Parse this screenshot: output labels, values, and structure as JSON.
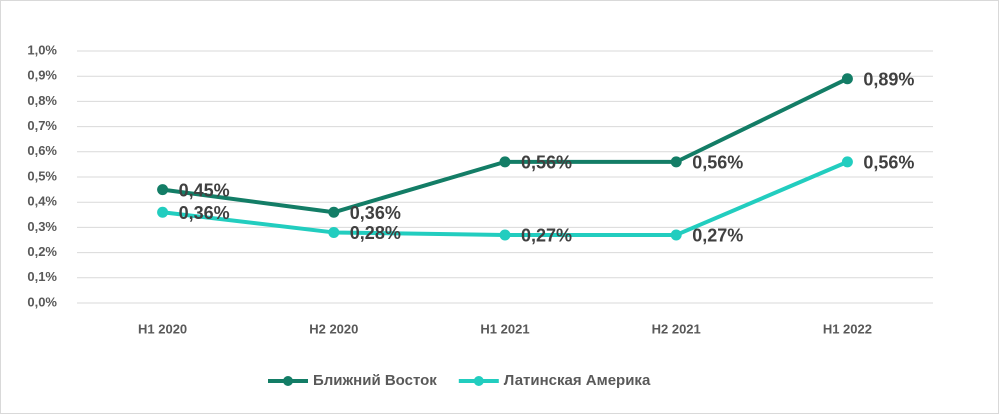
{
  "chart_data": {
    "type": "line",
    "categories": [
      "H1 2020",
      "H2 2020",
      "H1 2021",
      "H2 2021",
      "H1 2022"
    ],
    "series": [
      {
        "name": "Ближний Восток",
        "color": "#137d66",
        "values": [
          0.45,
          0.36,
          0.56,
          0.56,
          0.89
        ],
        "value_labels": [
          "0,45%",
          "0,36%",
          "0,56%",
          "0,56%",
          "0,89%"
        ]
      },
      {
        "name": "Латинская Америка",
        "color": "#22cdbf",
        "values": [
          0.36,
          0.28,
          0.27,
          0.27,
          0.56
        ],
        "value_labels": [
          "0,36%",
          "0,28%",
          "0,27%",
          "0,27%",
          "0,56%"
        ]
      }
    ],
    "ylim": [
      0,
      1.0
    ],
    "yticks": [
      {
        "value": 0,
        "label": "0,0%"
      },
      {
        "value": 0.1,
        "label": "0,1%"
      },
      {
        "value": 0.2,
        "label": "0,2%"
      },
      {
        "value": 0.3,
        "label": "0,3%"
      },
      {
        "value": 0.4,
        "label": "0,4%"
      },
      {
        "value": 0.5,
        "label": "0,5%"
      },
      {
        "value": 0.6,
        "label": "0,6%"
      },
      {
        "value": 0.7,
        "label": "0,7%"
      },
      {
        "value": 0.8,
        "label": "0,8%"
      },
      {
        "value": 0.9,
        "label": "0,9%"
      },
      {
        "value": 1.0,
        "label": "1,0%"
      }
    ],
    "grid": true,
    "legend": "bottom"
  }
}
